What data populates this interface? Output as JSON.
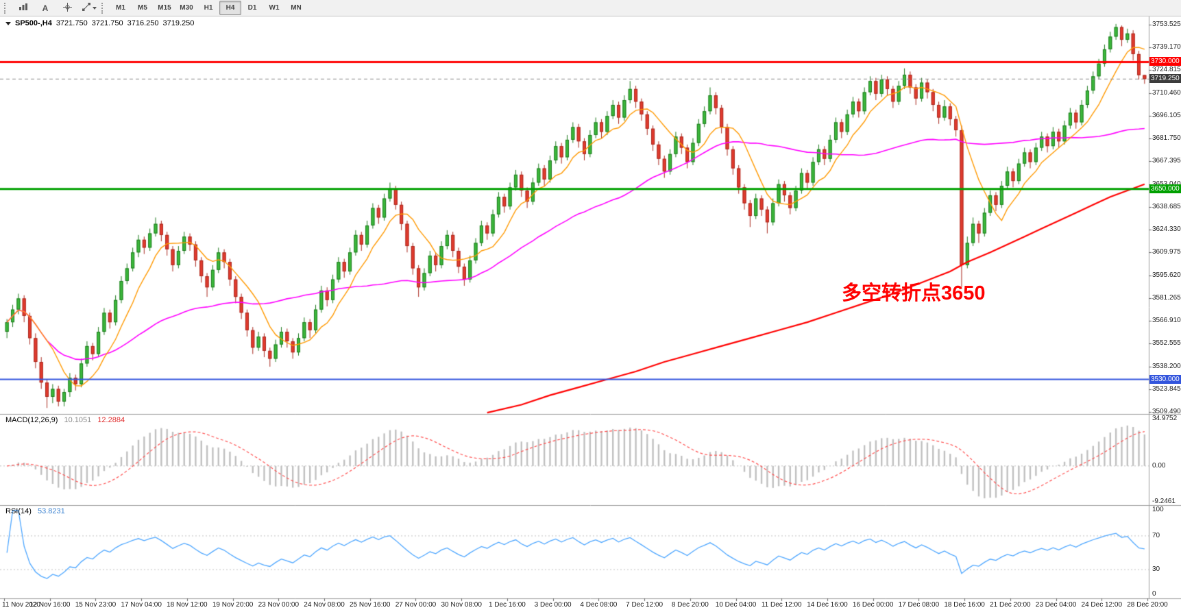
{
  "toolbar": {
    "icons": [
      {
        "name": "charts-icon"
      },
      {
        "name": "text-label-icon",
        "glyph": "A"
      },
      {
        "name": "crosshair-icon"
      },
      {
        "name": "objects-icon",
        "has_caret": true
      }
    ],
    "timeframes": [
      "M1",
      "M5",
      "M15",
      "M30",
      "H1",
      "H4",
      "D1",
      "W1",
      "MN"
    ],
    "active_timeframe": "H4"
  },
  "quote": {
    "symbol": "SP500-,H4",
    "open": "3721.750",
    "high": "3721.750",
    "low": "3716.250",
    "close": "3719.250"
  },
  "annotation": {
    "text": "多空转折点3650",
    "color": "#FF0000"
  },
  "colors": {
    "bull": "#3CB93C",
    "bull_border": "#1E7A1E",
    "bear": "#E23B2E",
    "bear_border": "#A8281E",
    "ma_fast": "#FF9900",
    "ma_mid": "#FF00FF",
    "ma_slow": "#FF0000",
    "macd_hist": "#C0C0C0",
    "macd_signal": "#FF5050",
    "rsi": "#4DA6FF",
    "price_tag": "#3C3C3C",
    "level_dotted": "#BDBDBD"
  },
  "chart_data": {
    "type": "candlestick",
    "symbol": "SP500",
    "timeframe": "H4",
    "price_range": [
      3509.49,
      3753.525
    ],
    "current_price": 3719.25,
    "current_price_label": "3719.250",
    "hlines": [
      {
        "price": 3730.0,
        "label": "3730.000",
        "color": "#FF0000",
        "width": 3
      },
      {
        "price": 3650.0,
        "label": "3650.000",
        "color": "#00A000",
        "width": 3
      },
      {
        "price": 3530.0,
        "label": "3530.000",
        "color": "#3355DD",
        "width": 2
      }
    ],
    "moving_averages": [
      {
        "name": "ma-fast",
        "method": "sma",
        "period": 8,
        "color": "#FF9900"
      },
      {
        "name": "ma-mid",
        "method": "sma",
        "period": 40,
        "color": "#FF00FF"
      },
      {
        "name": "ma-slow",
        "color": "#FF0000",
        "points": [
          [
            84,
            3509
          ],
          [
            90,
            3514
          ],
          [
            95,
            3520
          ],
          [
            100,
            3525
          ],
          [
            105,
            3530
          ],
          [
            110,
            3535
          ],
          [
            115,
            3541
          ],
          [
            120,
            3546
          ],
          [
            125,
            3551
          ],
          [
            130,
            3556
          ],
          [
            135,
            3561
          ],
          [
            140,
            3566
          ],
          [
            145,
            3572
          ],
          [
            150,
            3578
          ],
          [
            155,
            3584
          ],
          [
            160,
            3591
          ],
          [
            165,
            3598
          ],
          [
            168,
            3604
          ],
          [
            172,
            3610
          ],
          [
            175,
            3615
          ],
          [
            178,
            3620
          ],
          [
            181,
            3625
          ],
          [
            184,
            3630
          ],
          [
            187,
            3635
          ],
          [
            190,
            3640
          ],
          [
            193,
            3645
          ],
          [
            196,
            3649
          ],
          [
            199,
            3653
          ]
        ]
      }
    ],
    "indicators": {
      "macd": {
        "label": "MACD(12,26,9)",
        "fast": 12,
        "slow": 26,
        "signal": 9,
        "value_main": "10.1051",
        "value_signal": "12.2884",
        "axis_max": "34.9752",
        "axis_zero": "0.00",
        "axis_min": "-9.2461"
      },
      "rsi": {
        "label": "RSI(14)",
        "period": 14,
        "value": "53.8231",
        "levels": [
          70,
          30
        ],
        "axis": [
          "100",
          "70",
          "30",
          "0"
        ]
      }
    },
    "y_labels": [
      "3753.525",
      "3739.170",
      "3724.815",
      "3710.460",
      "3696.105",
      "3681.750",
      "3667.395",
      "3653.040",
      "3638.685",
      "3624.330",
      "3609.975",
      "3595.620",
      "3581.265",
      "3566.910",
      "3552.555",
      "3538.200",
      "3523.845",
      "3509.490"
    ],
    "x_labels": [
      "11 Nov 2020",
      "12 Nov 16:00",
      "15 Nov 23:00",
      "17 Nov 04:00",
      "18 Nov 12:00",
      "19 Nov 20:00",
      "23 Nov 00:00",
      "24 Nov 08:00",
      "25 Nov 16:00",
      "27 Nov 00:00",
      "30 Nov 08:00",
      "1 Dec 16:00",
      "3 Dec 00:00",
      "4 Dec 08:00",
      "7 Dec 12:00",
      "8 Dec 20:00",
      "10 Dec 04:00",
      "11 Dec 12:00",
      "14 Dec 16:00",
      "16 Dec 00:00",
      "17 Dec 08:00",
      "18 Dec 16:00",
      "21 Dec 20:00",
      "23 Dec 04:00",
      "24 Dec 12:00",
      "28 Dec 20:00"
    ],
    "candles": [
      [
        3560,
        3568,
        3556,
        3566
      ],
      [
        3566,
        3577,
        3563,
        3574
      ],
      [
        3574,
        3584,
        3571,
        3581
      ],
      [
        3581,
        3583,
        3566,
        3570
      ],
      [
        3570,
        3572,
        3552,
        3556
      ],
      [
        3556,
        3559,
        3537,
        3541
      ],
      [
        3541,
        3544,
        3524,
        3528
      ],
      [
        3528,
        3530,
        3512,
        3519
      ],
      [
        3519,
        3527,
        3515,
        3524
      ],
      [
        3524,
        3526,
        3513,
        3516
      ],
      [
        3516,
        3524,
        3513,
        3522
      ],
      [
        3522,
        3534,
        3519,
        3531
      ],
      [
        3531,
        3533,
        3523,
        3527
      ],
      [
        3527,
        3543,
        3525,
        3540
      ],
      [
        3540,
        3554,
        3538,
        3551
      ],
      [
        3551,
        3553,
        3542,
        3546
      ],
      [
        3546,
        3563,
        3544,
        3560
      ],
      [
        3560,
        3575,
        3558,
        3572
      ],
      [
        3572,
        3574,
        3562,
        3566
      ],
      [
        3566,
        3583,
        3564,
        3580
      ],
      [
        3580,
        3595,
        3578,
        3592
      ],
      [
        3592,
        3603,
        3590,
        3600
      ],
      [
        3600,
        3613,
        3598,
        3610
      ],
      [
        3610,
        3621,
        3607,
        3618
      ],
      [
        3618,
        3620,
        3609,
        3613
      ],
      [
        3613,
        3625,
        3611,
        3622
      ],
      [
        3622,
        3632,
        3620,
        3628
      ],
      [
        3628,
        3630,
        3617,
        3621
      ],
      [
        3621,
        3623,
        3608,
        3612
      ],
      [
        3612,
        3614,
        3598,
        3602
      ],
      [
        3602,
        3614,
        3600,
        3611
      ],
      [
        3611,
        3623,
        3609,
        3620
      ],
      [
        3620,
        3622,
        3611,
        3615
      ],
      [
        3615,
        3617,
        3601,
        3605
      ],
      [
        3605,
        3607,
        3591,
        3595
      ],
      [
        3595,
        3597,
        3582,
        3588
      ],
      [
        3588,
        3602,
        3586,
        3599
      ],
      [
        3599,
        3613,
        3597,
        3610
      ],
      [
        3610,
        3612,
        3600,
        3604
      ],
      [
        3604,
        3606,
        3589,
        3593
      ],
      [
        3593,
        3595,
        3578,
        3582
      ],
      [
        3582,
        3584,
        3568,
        3572
      ],
      [
        3572,
        3574,
        3557,
        3561
      ],
      [
        3561,
        3563,
        3546,
        3550
      ],
      [
        3550,
        3560,
        3548,
        3557
      ],
      [
        3557,
        3559,
        3544,
        3548
      ],
      [
        3548,
        3550,
        3538,
        3543
      ],
      [
        3543,
        3555,
        3541,
        3552
      ],
      [
        3552,
        3563,
        3550,
        3560
      ],
      [
        3560,
        3562,
        3550,
        3554
      ],
      [
        3554,
        3556,
        3543,
        3547
      ],
      [
        3547,
        3559,
        3545,
        3556
      ],
      [
        3556,
        3569,
        3554,
        3566
      ],
      [
        3566,
        3568,
        3556,
        3561
      ],
      [
        3561,
        3577,
        3559,
        3574
      ],
      [
        3574,
        3589,
        3572,
        3586
      ],
      [
        3586,
        3588,
        3576,
        3580
      ],
      [
        3580,
        3596,
        3578,
        3593
      ],
      [
        3593,
        3607,
        3591,
        3604
      ],
      [
        3604,
        3606,
        3594,
        3598
      ],
      [
        3598,
        3613,
        3596,
        3610
      ],
      [
        3610,
        3624,
        3608,
        3621
      ],
      [
        3621,
        3623,
        3611,
        3615
      ],
      [
        3615,
        3630,
        3613,
        3627
      ],
      [
        3627,
        3641,
        3625,
        3638
      ],
      [
        3638,
        3640,
        3628,
        3632
      ],
      [
        3632,
        3647,
        3630,
        3644
      ],
      [
        3644,
        3654,
        3642,
        3650
      ],
      [
        3650,
        3652,
        3637,
        3640
      ],
      [
        3640,
        3642,
        3624,
        3628
      ],
      [
        3628,
        3630,
        3610,
        3614
      ],
      [
        3614,
        3616,
        3596,
        3600
      ],
      [
        3600,
        3602,
        3582,
        3588
      ],
      [
        3588,
        3600,
        3586,
        3597
      ],
      [
        3597,
        3611,
        3595,
        3608
      ],
      [
        3608,
        3610,
        3598,
        3602
      ],
      [
        3602,
        3617,
        3600,
        3614
      ],
      [
        3614,
        3624,
        3612,
        3621
      ],
      [
        3621,
        3623,
        3607,
        3611
      ],
      [
        3611,
        3613,
        3597,
        3601
      ],
      [
        3601,
        3603,
        3589,
        3593
      ],
      [
        3593,
        3608,
        3591,
        3605
      ],
      [
        3605,
        3619,
        3603,
        3616
      ],
      [
        3616,
        3630,
        3614,
        3627
      ],
      [
        3627,
        3629,
        3618,
        3622
      ],
      [
        3622,
        3637,
        3620,
        3634
      ],
      [
        3634,
        3648,
        3632,
        3645
      ],
      [
        3645,
        3647,
        3635,
        3639
      ],
      [
        3639,
        3654,
        3637,
        3651
      ],
      [
        3651,
        3662,
        3649,
        3659
      ],
      [
        3659,
        3661,
        3645,
        3649
      ],
      [
        3649,
        3651,
        3638,
        3642
      ],
      [
        3642,
        3657,
        3640,
        3654
      ],
      [
        3654,
        3666,
        3652,
        3663
      ],
      [
        3663,
        3665,
        3652,
        3656
      ],
      [
        3656,
        3671,
        3654,
        3668
      ],
      [
        3668,
        3680,
        3666,
        3677
      ],
      [
        3677,
        3679,
        3666,
        3670
      ],
      [
        3670,
        3684,
        3668,
        3681
      ],
      [
        3681,
        3692,
        3679,
        3689
      ],
      [
        3689,
        3691,
        3676,
        3680
      ],
      [
        3680,
        3682,
        3668,
        3672
      ],
      [
        3672,
        3687,
        3670,
        3684
      ],
      [
        3684,
        3695,
        3682,
        3692
      ],
      [
        3692,
        3694,
        3682,
        3686
      ],
      [
        3686,
        3699,
        3684,
        3696
      ],
      [
        3696,
        3706,
        3694,
        3703
      ],
      [
        3703,
        3705,
        3691,
        3695
      ],
      [
        3695,
        3709,
        3693,
        3706
      ],
      [
        3706,
        3718,
        3704,
        3713
      ],
      [
        3713,
        3715,
        3701,
        3705
      ],
      [
        3705,
        3707,
        3693,
        3697
      ],
      [
        3697,
        3699,
        3684,
        3688
      ],
      [
        3688,
        3690,
        3674,
        3678
      ],
      [
        3678,
        3680,
        3665,
        3669
      ],
      [
        3669,
        3671,
        3657,
        3661
      ],
      [
        3661,
        3675,
        3659,
        3672
      ],
      [
        3672,
        3686,
        3670,
        3683
      ],
      [
        3683,
        3685,
        3672,
        3676
      ],
      [
        3676,
        3678,
        3663,
        3667
      ],
      [
        3667,
        3682,
        3665,
        3679
      ],
      [
        3679,
        3694,
        3677,
        3691
      ],
      [
        3691,
        3702,
        3689,
        3699
      ],
      [
        3699,
        3714,
        3697,
        3709
      ],
      [
        3709,
        3711,
        3697,
        3701
      ],
      [
        3701,
        3703,
        3685,
        3689
      ],
      [
        3689,
        3691,
        3671,
        3675
      ],
      [
        3675,
        3677,
        3659,
        3663
      ],
      [
        3663,
        3665,
        3647,
        3651
      ],
      [
        3651,
        3653,
        3637,
        3641
      ],
      [
        3641,
        3643,
        3626,
        3633
      ],
      [
        3633,
        3647,
        3631,
        3644
      ],
      [
        3644,
        3646,
        3633,
        3637
      ],
      [
        3637,
        3639,
        3622,
        3629
      ],
      [
        3629,
        3644,
        3627,
        3641
      ],
      [
        3641,
        3656,
        3639,
        3653
      ],
      [
        3653,
        3655,
        3642,
        3646
      ],
      [
        3646,
        3648,
        3634,
        3638
      ],
      [
        3638,
        3652,
        3636,
        3649
      ],
      [
        3649,
        3663,
        3647,
        3660
      ],
      [
        3660,
        3662,
        3650,
        3654
      ],
      [
        3654,
        3670,
        3652,
        3667
      ],
      [
        3667,
        3678,
        3665,
        3675
      ],
      [
        3675,
        3677,
        3665,
        3669
      ],
      [
        3669,
        3684,
        3667,
        3681
      ],
      [
        3681,
        3695,
        3679,
        3692
      ],
      [
        3692,
        3694,
        3682,
        3686
      ],
      [
        3686,
        3700,
        3684,
        3697
      ],
      [
        3697,
        3708,
        3695,
        3705
      ],
      [
        3705,
        3707,
        3695,
        3699
      ],
      [
        3699,
        3714,
        3697,
        3711
      ],
      [
        3711,
        3721,
        3709,
        3718
      ],
      [
        3718,
        3720,
        3706,
        3710
      ],
      [
        3710,
        3722,
        3708,
        3719
      ],
      [
        3719,
        3721,
        3709,
        3713
      ],
      [
        3713,
        3715,
        3701,
        3705
      ],
      [
        3705,
        3718,
        3703,
        3715
      ],
      [
        3715,
        3726,
        3713,
        3722
      ],
      [
        3722,
        3724,
        3710,
        3714
      ],
      [
        3714,
        3716,
        3703,
        3707
      ],
      [
        3707,
        3720,
        3705,
        3717
      ],
      [
        3717,
        3719,
        3707,
        3711
      ],
      [
        3711,
        3713,
        3699,
        3703
      ],
      [
        3703,
        3705,
        3691,
        3695
      ],
      [
        3695,
        3706,
        3693,
        3702
      ],
      [
        3702,
        3704,
        3690,
        3694
      ],
      [
        3694,
        3696,
        3683,
        3687
      ],
      [
        3687,
        3690,
        3588,
        3602
      ],
      [
        3602,
        3620,
        3600,
        3616
      ],
      [
        3616,
        3632,
        3614,
        3628
      ],
      [
        3628,
        3630,
        3616,
        3622
      ],
      [
        3622,
        3638,
        3620,
        3635
      ],
      [
        3635,
        3649,
        3633,
        3646
      ],
      [
        3646,
        3648,
        3636,
        3640
      ],
      [
        3640,
        3655,
        3638,
        3652
      ],
      [
        3652,
        3664,
        3650,
        3661
      ],
      [
        3661,
        3663,
        3651,
        3655
      ],
      [
        3655,
        3669,
        3653,
        3666
      ],
      [
        3666,
        3676,
        3664,
        3673
      ],
      [
        3673,
        3675,
        3663,
        3667
      ],
      [
        3667,
        3679,
        3665,
        3676
      ],
      [
        3676,
        3686,
        3674,
        3683
      ],
      [
        3683,
        3685,
        3673,
        3677
      ],
      [
        3677,
        3689,
        3675,
        3686
      ],
      [
        3686,
        3688,
        3676,
        3680
      ],
      [
        3680,
        3693,
        3678,
        3690
      ],
      [
        3690,
        3701,
        3688,
        3698
      ],
      [
        3698,
        3700,
        3688,
        3692
      ],
      [
        3692,
        3706,
        3690,
        3703
      ],
      [
        3703,
        3715,
        3701,
        3712
      ],
      [
        3712,
        3724,
        3710,
        3721
      ],
      [
        3721,
        3732,
        3719,
        3729
      ],
      [
        3729,
        3741,
        3727,
        3738
      ],
      [
        3738,
        3749,
        3736,
        3746
      ],
      [
        3746,
        3754,
        3744,
        3752
      ],
      [
        3752,
        3753,
        3740,
        3744
      ],
      [
        3744,
        3751,
        3742,
        3748
      ],
      [
        3748,
        3750,
        3731,
        3735
      ],
      [
        3735,
        3737,
        3719,
        3721.75
      ],
      [
        3721.75,
        3721.75,
        3716.25,
        3719.25
      ]
    ]
  }
}
